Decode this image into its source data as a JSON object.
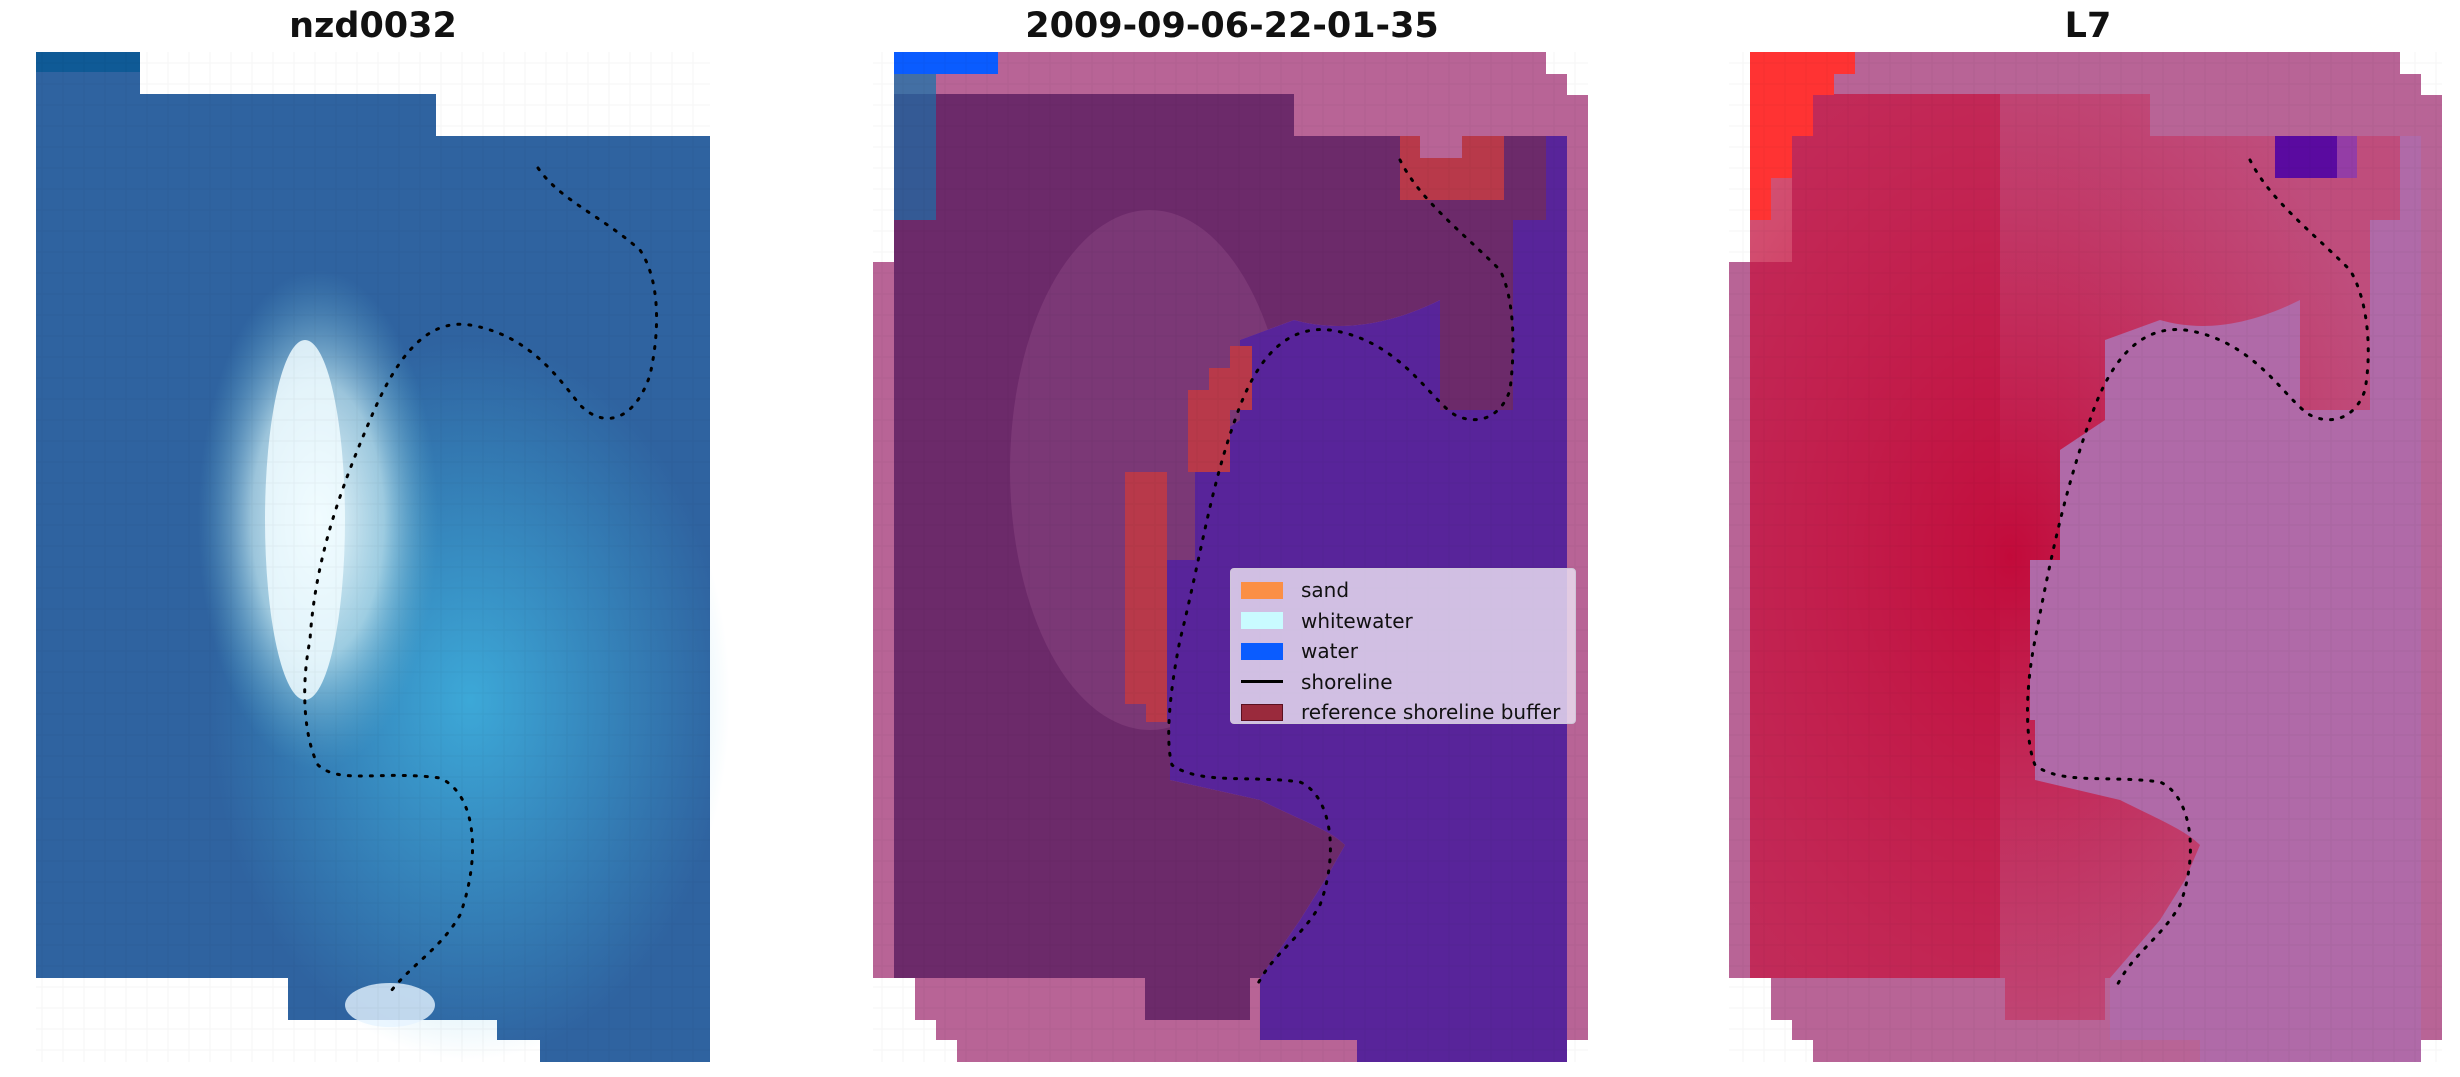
{
  "panels": [
    {
      "title": "nzd0032"
    },
    {
      "title": "2009-09-06-22-01-35"
    },
    {
      "title": "L7"
    }
  ],
  "legend": {
    "items": [
      {
        "label": "sand",
        "kind": "patch",
        "color": "#fb8f45"
      },
      {
        "label": "whitewater",
        "kind": "patch",
        "color": "#c9fbff"
      },
      {
        "label": "water",
        "kind": "patch",
        "color": "#0a5cff"
      },
      {
        "label": "shoreline",
        "kind": "line",
        "color": "#000000"
      },
      {
        "label": "reference shoreline buffer",
        "kind": "patch",
        "color": "#9a2a3c"
      }
    ]
  },
  "colors": {
    "rgb_water_dark": "#2f63a0",
    "rgb_water_light": "#3aa5d4",
    "rgb_whitewater": "#e6faff",
    "class_land": "#6c2a6a",
    "class_water": "#58249a",
    "class_nodata_pink": "#b86496",
    "class_buffer": "#b8394a",
    "index_land": "#c2103e",
    "index_water": "#b06aa8",
    "index_nodata_pink": "#b86496",
    "index_corner_red": "#ff3333",
    "index_corner_purple": "#5a0aa0"
  }
}
